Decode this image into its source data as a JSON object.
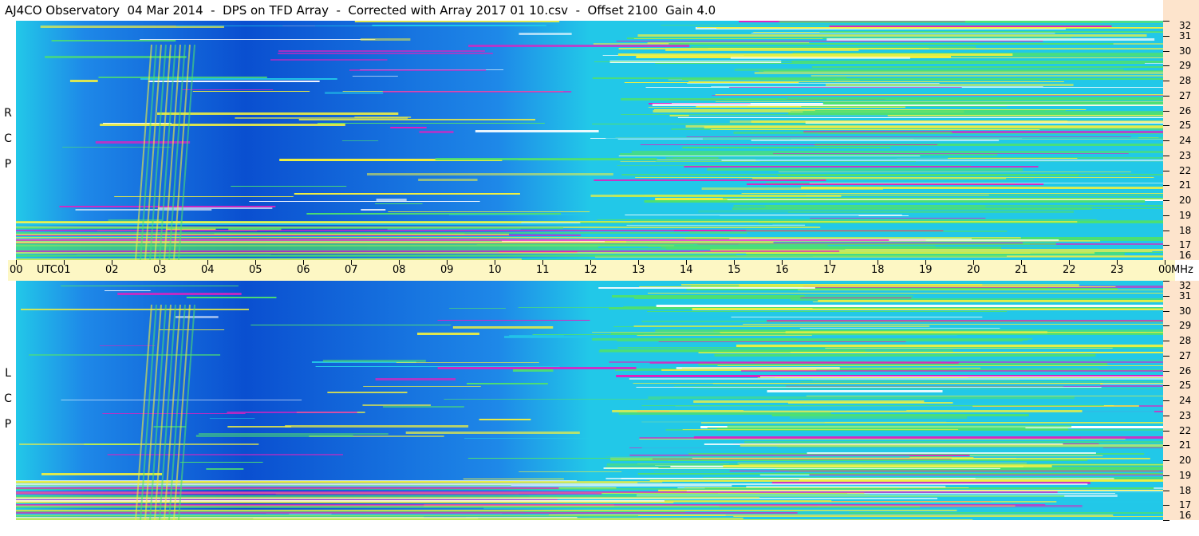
{
  "title": "AJ4CO Observatory  04 Mar 2014  -  DPS on TFD Array  -  Corrected with Array 2017 01 10.csv  -  Offset 2100  Gain 4.0",
  "panels": [
    {
      "id": "rcp",
      "label_letters": [
        "R",
        "C",
        "P"
      ]
    },
    {
      "id": "lcp",
      "label_letters": [
        "L",
        "C",
        "P"
      ]
    }
  ],
  "time_axis": {
    "unit_label": "UTC",
    "hours": [
      "00",
      "01",
      "02",
      "03",
      "04",
      "05",
      "06",
      "07",
      "08",
      "09",
      "10",
      "11",
      "12",
      "13",
      "14",
      "15",
      "16",
      "17",
      "18",
      "19",
      "20",
      "21",
      "22",
      "23",
      "00"
    ],
    "freq_unit": "MHz"
  },
  "freq_axis": {
    "ticks": [
      "32",
      "31",
      "30",
      "29",
      "28",
      "27",
      "26",
      "25",
      "24",
      "23",
      "22",
      "21",
      "20",
      "19",
      "18",
      "17",
      "16"
    ]
  },
  "colors": {
    "deep_blue": "#0a4fd0",
    "blue": "#1e88e8",
    "cyan": "#22c8e8",
    "green": "#4ee070",
    "yellow": "#f0f040",
    "magenta": "#e020c0",
    "white": "#ffffff",
    "axis_bg": "#fdf7c4",
    "freq_bg": "#fde4cc"
  }
}
